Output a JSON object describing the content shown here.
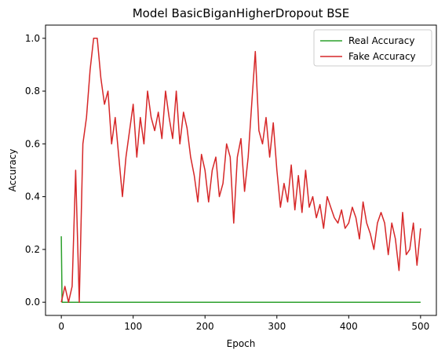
{
  "chart_data": {
    "type": "line",
    "title": "Model BasicBiganHigherDropout BSE",
    "xlabel": "Epoch",
    "ylabel": "Accuracy",
    "xlim": [
      -22,
      522
    ],
    "ylim": [
      -0.05,
      1.05
    ],
    "x_ticks": [
      0,
      100,
      200,
      300,
      400,
      500
    ],
    "y_ticks": [
      0.0,
      0.2,
      0.4,
      0.6,
      0.8,
      1.0
    ],
    "x_tick_labels": [
      "0",
      "100",
      "200",
      "300",
      "400",
      "500"
    ],
    "y_tick_labels": [
      "0.0",
      "0.2",
      "0.4",
      "0.6",
      "0.8",
      "1.0"
    ],
    "grid": false,
    "legend_position": "upper-right",
    "series": [
      {
        "name": "Real Accuracy",
        "color": "#2ca02c",
        "x": [
          0,
          1,
          2,
          500
        ],
        "y": [
          0.25,
          0.0,
          0.0,
          0.0
        ]
      },
      {
        "name": "Fake Accuracy",
        "color": "#d62728",
        "x": [
          0,
          5,
          10,
          15,
          20,
          25,
          30,
          35,
          40,
          45,
          50,
          55,
          60,
          65,
          70,
          75,
          80,
          85,
          90,
          95,
          100,
          105,
          110,
          115,
          120,
          125,
          130,
          135,
          140,
          145,
          150,
          155,
          160,
          165,
          170,
          175,
          180,
          185,
          190,
          195,
          200,
          205,
          210,
          215,
          220,
          225,
          230,
          235,
          240,
          245,
          250,
          255,
          260,
          265,
          270,
          275,
          280,
          285,
          290,
          295,
          300,
          305,
          310,
          315,
          320,
          325,
          330,
          335,
          340,
          345,
          350,
          355,
          360,
          365,
          370,
          375,
          380,
          385,
          390,
          395,
          400,
          405,
          410,
          415,
          420,
          425,
          430,
          435,
          440,
          445,
          450,
          455,
          460,
          465,
          470,
          475,
          480,
          485,
          490,
          495,
          500
        ],
        "y": [
          0.0,
          0.06,
          0.0,
          0.06,
          0.5,
          0.0,
          0.6,
          0.7,
          0.88,
          1.0,
          1.0,
          0.85,
          0.75,
          0.8,
          0.6,
          0.7,
          0.55,
          0.4,
          0.55,
          0.65,
          0.75,
          0.55,
          0.7,
          0.6,
          0.8,
          0.7,
          0.65,
          0.72,
          0.62,
          0.8,
          0.7,
          0.62,
          0.8,
          0.6,
          0.72,
          0.66,
          0.55,
          0.48,
          0.38,
          0.56,
          0.5,
          0.38,
          0.5,
          0.55,
          0.4,
          0.45,
          0.6,
          0.55,
          0.3,
          0.55,
          0.62,
          0.42,
          0.55,
          0.75,
          0.95,
          0.65,
          0.6,
          0.7,
          0.55,
          0.68,
          0.5,
          0.36,
          0.45,
          0.38,
          0.52,
          0.35,
          0.48,
          0.34,
          0.5,
          0.36,
          0.4,
          0.32,
          0.37,
          0.28,
          0.4,
          0.36,
          0.32,
          0.3,
          0.35,
          0.28,
          0.3,
          0.36,
          0.32,
          0.24,
          0.38,
          0.3,
          0.26,
          0.2,
          0.3,
          0.34,
          0.3,
          0.18,
          0.3,
          0.24,
          0.12,
          0.34,
          0.18,
          0.2,
          0.3,
          0.14,
          0.28
        ]
      }
    ]
  }
}
